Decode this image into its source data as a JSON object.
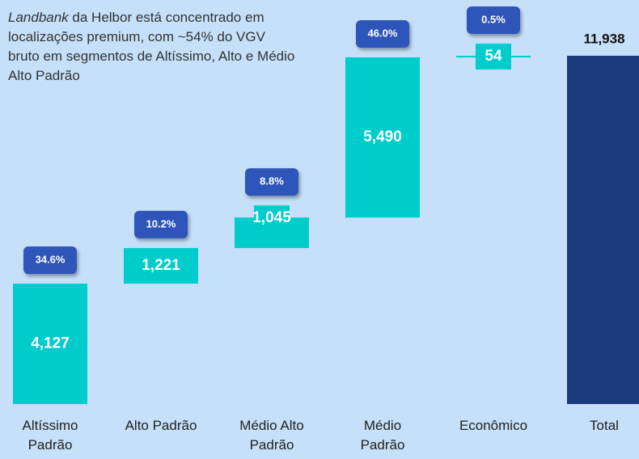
{
  "chart_data": {
    "type": "waterfall",
    "annotation_emphasis": "Landbank",
    "annotation": " da Helbor está concentrado em localizações premium, com ~54% do VGV bruto em segmentos de Altíssimo, Alto e Médio Alto Padrão",
    "categories": [
      "Altíssimo Padrão",
      "Alto Padrão",
      "Médio Alto Padrão",
      "Médio Padrão",
      "Econômico",
      "Total"
    ],
    "values": [
      4127,
      1221,
      1045,
      5490,
      54,
      11938
    ],
    "value_labels": [
      "4,127",
      "1,221",
      "1,045",
      "5,490",
      "54",
      "11,938"
    ],
    "is_total": [
      false,
      false,
      false,
      false,
      false,
      true
    ],
    "shares": [
      34.6,
      10.2,
      8.8,
      46.0,
      0.5,
      null
    ],
    "share_labels": [
      "34.6%",
      "10.2%",
      "8.8%",
      "46.0%",
      "0.5%",
      null
    ],
    "color": "#00CCCC",
    "total_color": "#1B3A7C",
    "badge_color": "#2E55B9"
  }
}
